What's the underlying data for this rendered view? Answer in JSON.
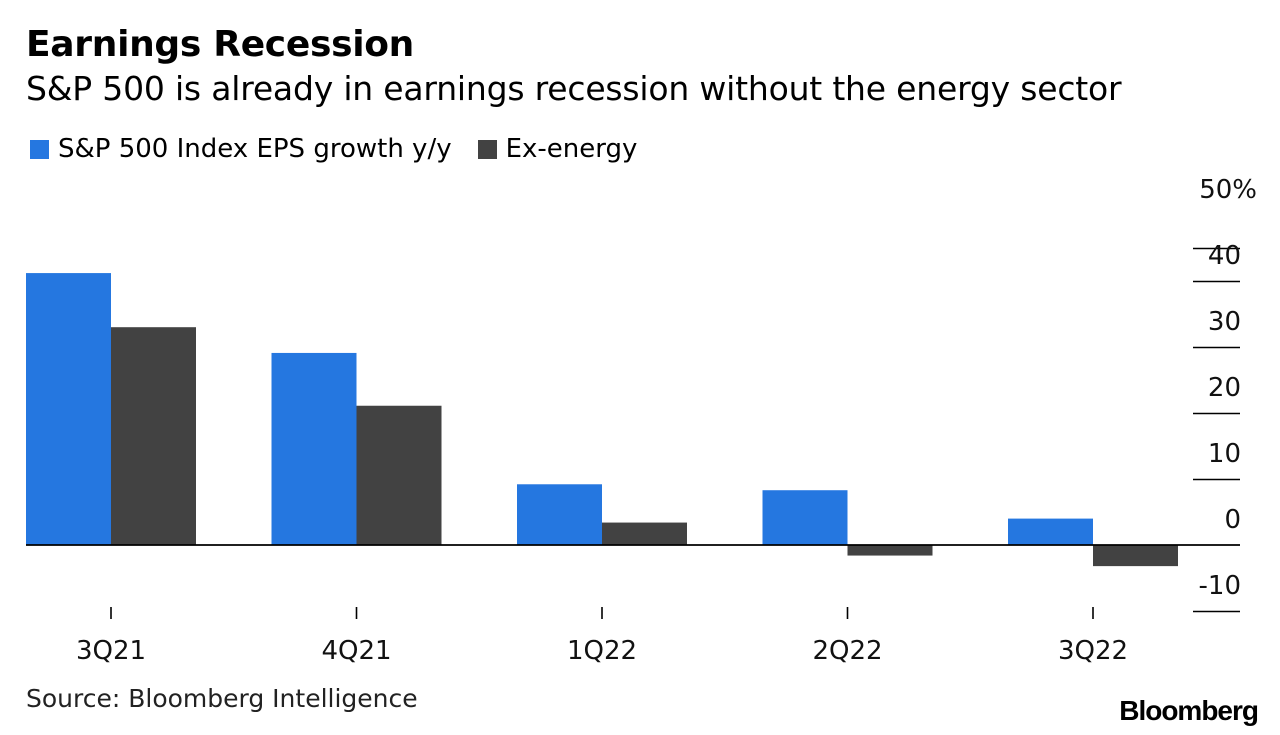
{
  "title": "Earnings Recession",
  "subtitle": "S&P 500 is already in earnings recession without the energy sector",
  "source": "Source: Bloomberg Intelligence",
  "brand": "Bloomberg",
  "chart_data": {
    "type": "bar",
    "categories": [
      "3Q21",
      "4Q21",
      "1Q22",
      "2Q22",
      "3Q22"
    ],
    "series": [
      {
        "name": "S&P 500 Index EPS growth y/y",
        "color": "#2577e0",
        "values": [
          41.2,
          29.1,
          9.2,
          8.3,
          4.0
        ]
      },
      {
        "name": "Ex-energy",
        "color": "#424242",
        "values": [
          33.0,
          21.1,
          3.4,
          -1.6,
          -3.2
        ]
      }
    ],
    "ylim": [
      -10,
      50
    ],
    "yticks": [
      {
        "value": 50,
        "label": "50%"
      },
      {
        "value": 40,
        "label": "40"
      },
      {
        "value": 30,
        "label": "30"
      },
      {
        "value": 20,
        "label": "20"
      },
      {
        "value": 10,
        "label": "10"
      },
      {
        "value": 0,
        "label": "0"
      },
      {
        "value": -10,
        "label": "-10"
      }
    ],
    "axis_side": "right",
    "legend_position": "top-left",
    "grid": false
  }
}
